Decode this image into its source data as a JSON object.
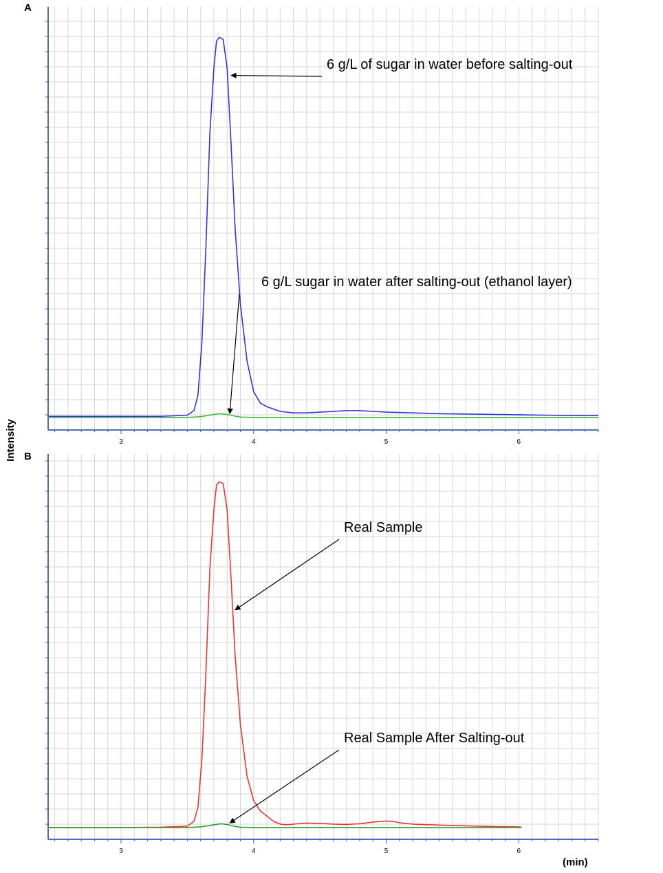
{
  "figure": {
    "ylabel": "Intensity",
    "x_unit": "(min)"
  },
  "chart_data": [
    {
      "type": "line",
      "panel_label": "A",
      "xlim": [
        2.45,
        6.6
      ],
      "ylim": [
        -0.02,
        1.08
      ],
      "x_ticks": [
        3,
        4,
        5,
        6
      ],
      "grid": true,
      "series": [
        {
          "color": "#3333dd",
          "x": [
            2.45,
            3.0,
            3.3,
            3.5,
            3.55,
            3.58,
            3.61,
            3.64,
            3.67,
            3.7,
            3.72,
            3.74,
            3.77,
            3.8,
            3.83,
            3.86,
            3.9,
            3.95,
            4.0,
            4.05,
            4.1,
            4.2,
            4.3,
            4.4,
            4.5,
            4.6,
            4.7,
            4.8,
            4.85,
            4.9,
            5.0,
            5.2,
            5.4,
            5.6,
            5.8,
            6.0,
            6.2,
            6.4,
            6.6
          ],
          "y": [
            0.005,
            0.005,
            0.005,
            0.008,
            0.02,
            0.06,
            0.2,
            0.45,
            0.75,
            0.92,
            0.99,
            1.0,
            0.995,
            0.92,
            0.72,
            0.5,
            0.3,
            0.15,
            0.07,
            0.04,
            0.03,
            0.018,
            0.014,
            0.014,
            0.016,
            0.018,
            0.02,
            0.02,
            0.019,
            0.018,
            0.016,
            0.014,
            0.012,
            0.011,
            0.01,
            0.009,
            0.008,
            0.007,
            0.007
          ]
        },
        {
          "color": "#44bb44",
          "x": [
            2.45,
            3.5,
            3.6,
            3.7,
            3.75,
            3.8,
            3.85,
            3.9,
            4.0,
            4.5,
            5.0,
            5.5,
            6.0,
            6.6
          ],
          "y": [
            0.002,
            0.002,
            0.004,
            0.01,
            0.012,
            0.01,
            0.006,
            0.003,
            0.002,
            0.002,
            0.002,
            0.002,
            0.002,
            0.002
          ]
        }
      ],
      "annotations": [
        {
          "text": "6 g/L of sugar in water before salting-out",
          "target": [
            3.83,
            0.9
          ]
        },
        {
          "text": "6 g/L sugar in water after salting-out (ethanol layer)",
          "target": [
            3.82,
            0.012
          ]
        }
      ]
    },
    {
      "type": "line",
      "panel_label": "B",
      "xlim": [
        2.45,
        6.6
      ],
      "ylim": [
        -0.02,
        1.08
      ],
      "x_ticks": [
        3,
        4,
        5,
        6
      ],
      "grid": true,
      "series": [
        {
          "color": "#ee3333",
          "x": [
            2.45,
            3.0,
            3.3,
            3.5,
            3.55,
            3.58,
            3.61,
            3.64,
            3.67,
            3.7,
            3.72,
            3.74,
            3.77,
            3.8,
            3.83,
            3.86,
            3.9,
            3.95,
            4.0,
            4.05,
            4.1,
            4.15,
            4.2,
            4.25,
            4.3,
            4.4,
            4.5,
            4.6,
            4.7,
            4.8,
            4.9,
            5.0,
            5.05,
            5.1,
            5.2,
            5.4,
            5.6,
            5.8,
            6.0,
            6.02
          ],
          "y": [
            0.002,
            0.002,
            0.003,
            0.006,
            0.02,
            0.06,
            0.2,
            0.45,
            0.75,
            0.92,
            0.99,
            1.0,
            0.995,
            0.92,
            0.72,
            0.5,
            0.3,
            0.15,
            0.08,
            0.05,
            0.035,
            0.02,
            0.012,
            0.01,
            0.012,
            0.015,
            0.014,
            0.012,
            0.011,
            0.013,
            0.018,
            0.021,
            0.02,
            0.016,
            0.012,
            0.009,
            0.007,
            0.005,
            0.004,
            0.003
          ]
        },
        {
          "color": "#2e9e2e",
          "x": [
            2.45,
            3.5,
            3.6,
            3.7,
            3.75,
            3.8,
            3.85,
            3.9,
            4.0,
            4.5,
            5.0,
            5.5,
            6.0,
            6.02
          ],
          "y": [
            0.002,
            0.002,
            0.004,
            0.01,
            0.013,
            0.011,
            0.006,
            0.003,
            0.002,
            0.002,
            0.002,
            0.002,
            0.002,
            0.002
          ]
        }
      ],
      "annotations": [
        {
          "text": "Real Sample",
          "target": [
            3.86,
            0.63
          ]
        },
        {
          "text": "Real Sample After Salting-out",
          "target": [
            3.82,
            0.015
          ]
        }
      ]
    }
  ]
}
